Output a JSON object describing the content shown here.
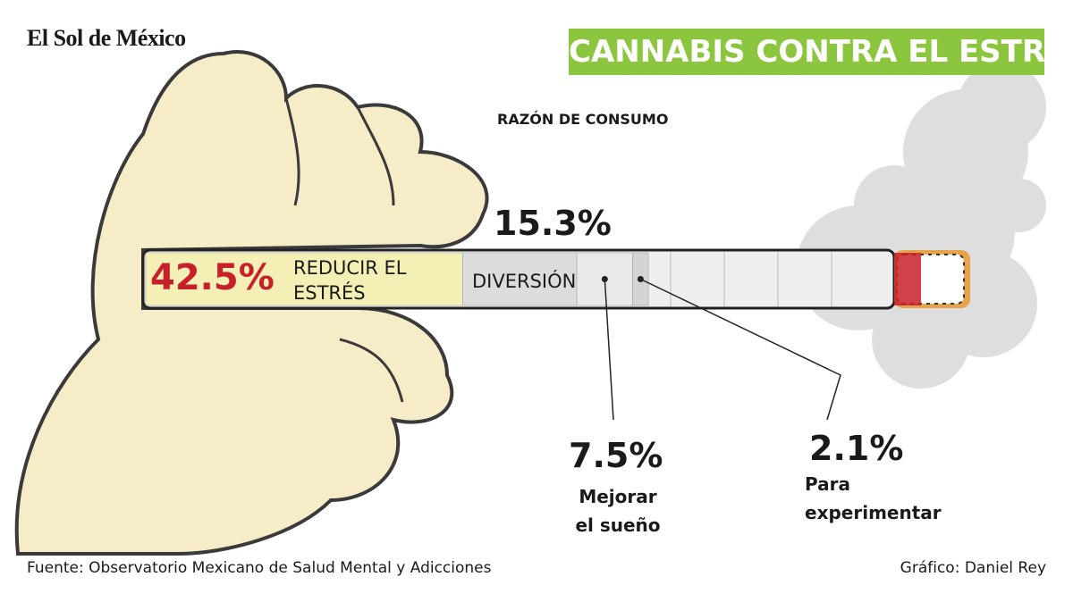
{
  "logo": "El Sol de México",
  "chart_data": {
    "type": "cigarette",
    "title": "CANNABIS CONTRA EL ESTRÉS",
    "subtitle": "RAZÓN DE CONSUMO",
    "categories": [
      "REDUCIR EL ESTRÉS",
      "DIVERSIÓN",
      "Mejorar el sueño",
      "Para experimentar"
    ],
    "values": [
      42.5,
      15.3,
      7.5,
      2.1
    ],
    "value_labels": [
      "42.5%",
      "15.3%",
      "7.5%",
      "2.1%"
    ],
    "colors": [
      "#f4efb4",
      "#dcdcdc",
      "#e9e9e9",
      "#d4d4d4"
    ],
    "xlim": [
      0,
      100
    ]
  },
  "footer": {
    "source": "Fuente: Observatorio Mexicano de Salud Mental y Adicciones",
    "credit": "Gráfico: Daniel Rey"
  }
}
